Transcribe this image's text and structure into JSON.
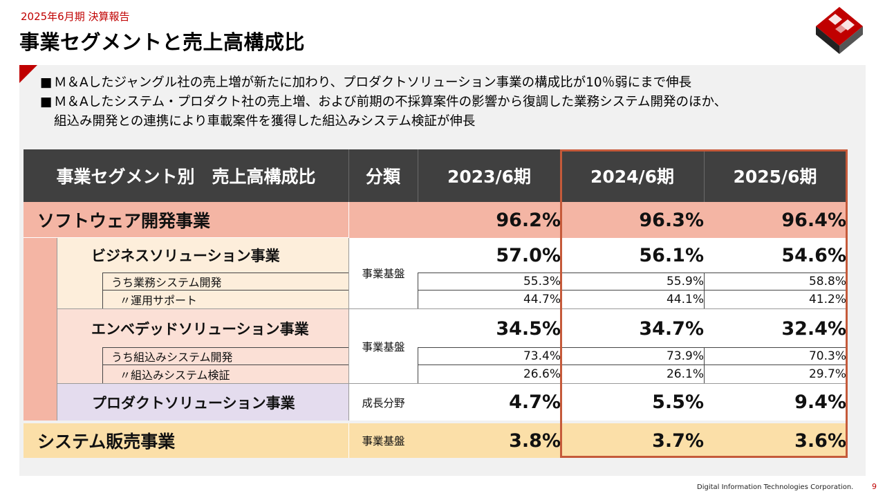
{
  "header": {
    "period": "2025年6月期  決算報告",
    "title": "事業セグメントと売上高構成比"
  },
  "bullets": [
    {
      "mark": "■",
      "text": "Ｍ＆Aしたジャングル社の売上増が新たに加わり、プロダクトソリューション事業の構成比が10％弱にまで伸長"
    },
    {
      "mark": "■",
      "text": "Ｍ＆Aしたシステム・プロダクト社の売上増、および前期の不採算案件の影響から復調した業務システム開発のほか、"
    },
    {
      "mark": "",
      "text": "組込み開発との連携により車載案件を獲得した組込みシステム検証が伸長"
    }
  ],
  "table": {
    "headers": [
      "事業セグメント別　売上高構成比",
      "分類",
      "2023/6期",
      "2024/6期",
      "2025/6期"
    ],
    "software": {
      "label": "ソフトウェア開発事業",
      "values": [
        "96.2%",
        "96.3%",
        "96.4%"
      ]
    },
    "business": {
      "label": "ビジネスソリューション事業",
      "category": "事業基盤",
      "values": [
        "57.0%",
        "56.1%",
        "54.6%"
      ],
      "subs": [
        {
          "label": "うち業務システム開発",
          "values": [
            "55.3%",
            "55.9%",
            "58.8%"
          ]
        },
        {
          "label": "〃運用サポート",
          "values": [
            "44.7%",
            "44.1%",
            "41.2%"
          ]
        }
      ]
    },
    "embedded": {
      "label": "エンベデッドソリューション事業",
      "category": "事業基盤",
      "values": [
        "34.5%",
        "34.7%",
        "32.4%"
      ],
      "subs": [
        {
          "label": "うち組込みシステム開発",
          "values": [
            "73.4%",
            "73.9%",
            "70.3%"
          ]
        },
        {
          "label": "〃組込みシステム検証",
          "values": [
            "26.6%",
            "26.1%",
            "29.7%"
          ]
        }
      ]
    },
    "product": {
      "label": "プロダクトソリューション事業",
      "category": "成長分野",
      "values": [
        "4.7%",
        "5.5%",
        "9.4%"
      ]
    },
    "system_sales": {
      "label": "システム販売事業",
      "category": "事業基盤",
      "values": [
        "3.8%",
        "3.7%",
        "3.6%"
      ]
    }
  },
  "colors": {
    "header_bg": "#404040",
    "software_bg": "#f4b5a4",
    "business_bg": "#fdeedb",
    "embedded_bg": "#fbe0d6",
    "product_bg": "#e4dcee",
    "system_bg": "#fbdfa8",
    "highlight_border": "#c55a3a",
    "accent": "#c00000"
  },
  "footer": {
    "company": "Digital Information Technologies Corporation.",
    "page": "9"
  }
}
